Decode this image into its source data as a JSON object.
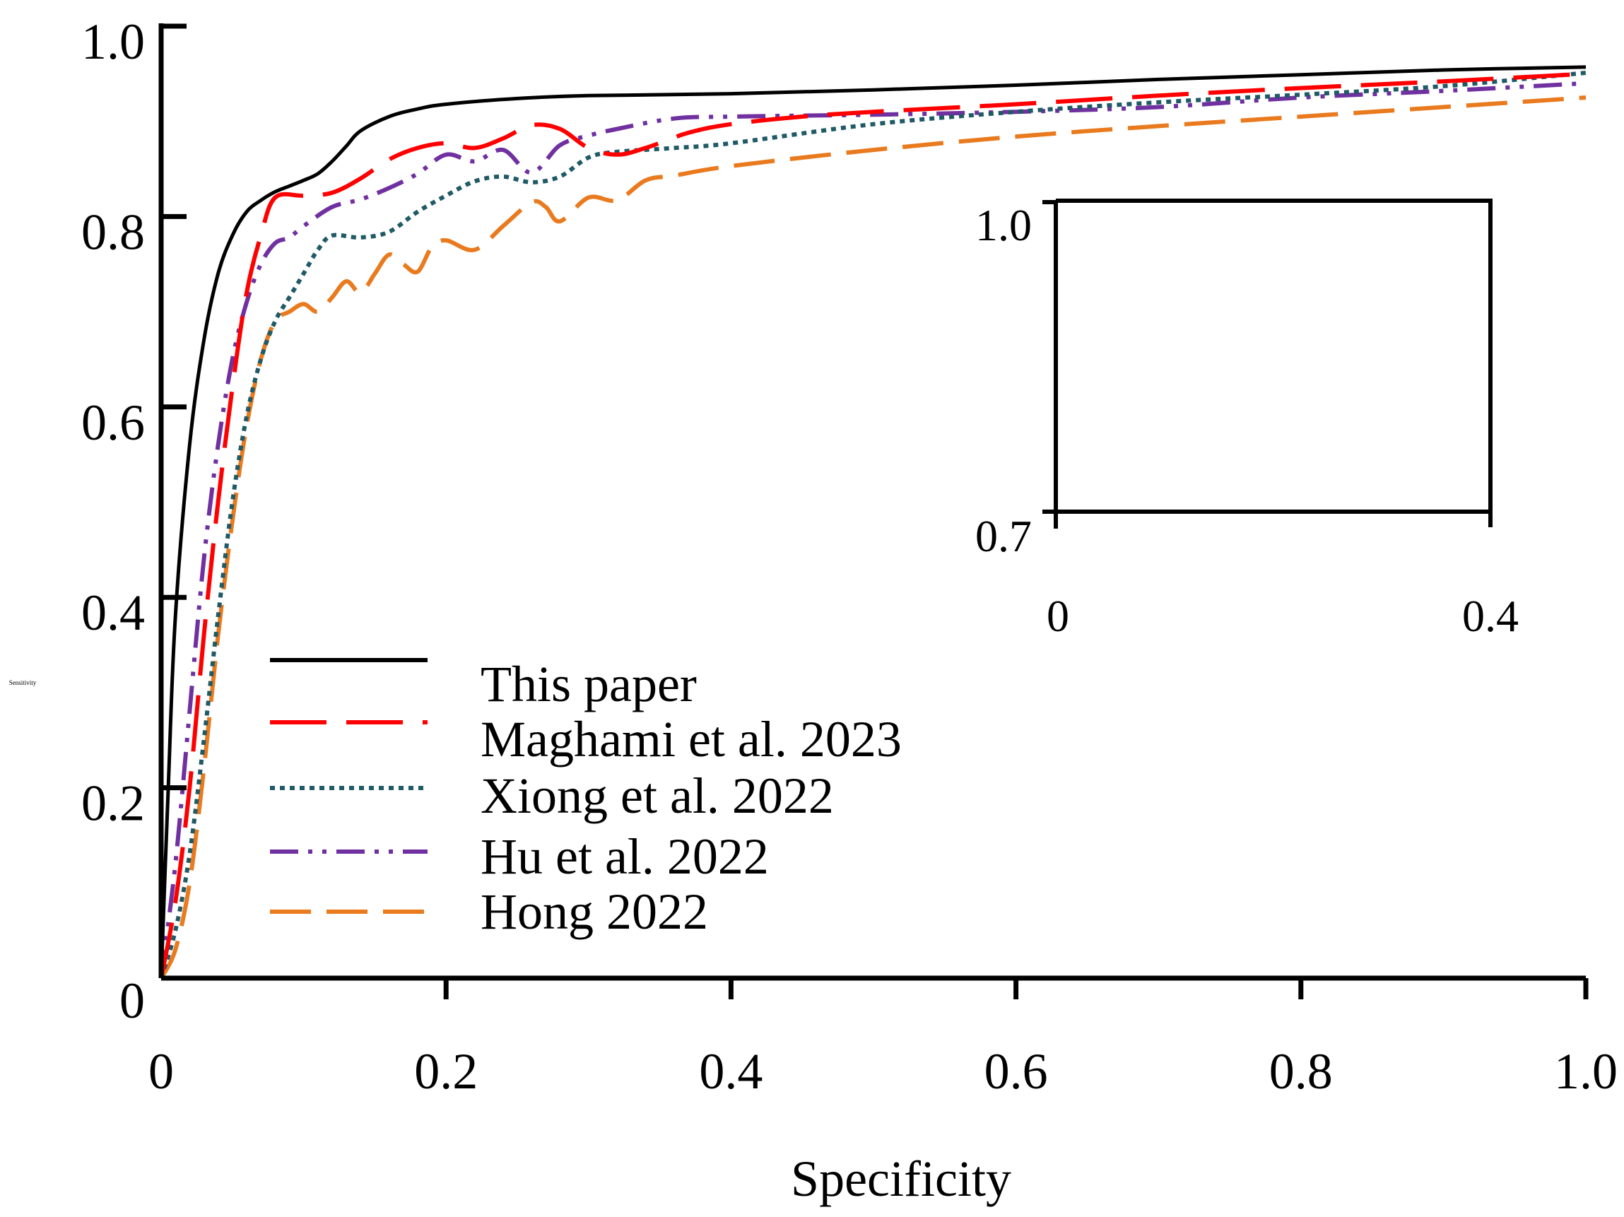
{
  "chart_data": {
    "type": "line",
    "title": "",
    "xlabel": "Specificity",
    "ylabel": "Sensitivity",
    "xlim": [
      0,
      1
    ],
    "ylim": [
      0,
      1
    ],
    "x_ticks": [
      0,
      0.2,
      0.4,
      0.6,
      0.8,
      1.0
    ],
    "x_tick_labels": [
      "0",
      "0.2",
      "0.4",
      "0.6",
      "0.8",
      "1.0"
    ],
    "y_ticks": [
      0,
      0.2,
      0.4,
      0.6,
      0.8,
      1.0
    ],
    "y_tick_labels": [
      "0",
      "0.2",
      "0.4",
      "0.6",
      "0.8",
      "1.0"
    ],
    "grid": false,
    "legend_position": "lower-left",
    "series": [
      {
        "name": "This paper",
        "color": "#000000",
        "style": "solid",
        "x": [
          0,
          0.005,
          0.01,
          0.02,
          0.03,
          0.04,
          0.05,
          0.06,
          0.07,
          0.08,
          0.09,
          0.1,
          0.11,
          0.12,
          0.13,
          0.14,
          0.16,
          0.18,
          0.2,
          0.25,
          0.3,
          0.4,
          0.5,
          0.6,
          0.7,
          0.8,
          0.9,
          1.0
        ],
        "y": [
          0,
          0.2,
          0.38,
          0.56,
          0.67,
          0.74,
          0.78,
          0.805,
          0.817,
          0.826,
          0.832,
          0.838,
          0.845,
          0.858,
          0.874,
          0.89,
          0.905,
          0.913,
          0.918,
          0.924,
          0.927,
          0.929,
          0.933,
          0.938,
          0.944,
          0.949,
          0.954,
          0.957
        ]
      },
      {
        "name": "Maghami et al. 2023",
        "color": "#ff0000",
        "style": "long-dash",
        "x": [
          0,
          0.01,
          0.02,
          0.03,
          0.04,
          0.05,
          0.06,
          0.07,
          0.08,
          0.1,
          0.12,
          0.14,
          0.16,
          0.18,
          0.2,
          0.22,
          0.24,
          0.26,
          0.28,
          0.3,
          0.32,
          0.34,
          0.37,
          0.4,
          0.45,
          0.5,
          0.6,
          0.7,
          0.8,
          0.9,
          1.0
        ],
        "y": [
          0,
          0.08,
          0.2,
          0.36,
          0.5,
          0.62,
          0.72,
          0.78,
          0.82,
          0.822,
          0.825,
          0.84,
          0.86,
          0.872,
          0.877,
          0.872,
          0.882,
          0.896,
          0.892,
          0.872,
          0.865,
          0.872,
          0.888,
          0.897,
          0.905,
          0.91,
          0.918,
          0.927,
          0.935,
          0.942,
          0.95
        ]
      },
      {
        "name": "Xiong et al. 2022",
        "color": "#1f5a66",
        "style": "dotted",
        "x": [
          0,
          0.01,
          0.02,
          0.03,
          0.04,
          0.05,
          0.06,
          0.07,
          0.08,
          0.09,
          0.1,
          0.11,
          0.12,
          0.14,
          0.16,
          0.18,
          0.2,
          0.22,
          0.24,
          0.26,
          0.28,
          0.3,
          0.32,
          0.36,
          0.4,
          0.5,
          0.6,
          0.7,
          0.8,
          0.9,
          1.0
        ],
        "y": [
          0,
          0.05,
          0.13,
          0.25,
          0.38,
          0.5,
          0.59,
          0.65,
          0.69,
          0.715,
          0.74,
          0.765,
          0.78,
          0.778,
          0.784,
          0.805,
          0.822,
          0.837,
          0.842,
          0.836,
          0.842,
          0.862,
          0.868,
          0.872,
          0.877,
          0.897,
          0.91,
          0.92,
          0.928,
          0.937,
          0.951
        ]
      },
      {
        "name": "Hu et al. 2022",
        "color": "#7030a0",
        "style": "dash-dot-dot",
        "x": [
          0,
          0.01,
          0.02,
          0.03,
          0.04,
          0.05,
          0.06,
          0.07,
          0.08,
          0.09,
          0.1,
          0.12,
          0.14,
          0.16,
          0.18,
          0.2,
          0.22,
          0.24,
          0.26,
          0.28,
          0.3,
          0.32,
          0.36,
          0.4,
          0.5,
          0.6,
          0.7,
          0.8,
          0.9,
          1.0
        ],
        "y": [
          0,
          0.12,
          0.28,
          0.44,
          0.56,
          0.65,
          0.71,
          0.75,
          0.772,
          0.778,
          0.79,
          0.81,
          0.818,
          0.83,
          0.845,
          0.865,
          0.858,
          0.87,
          0.846,
          0.875,
          0.885,
          0.892,
          0.903,
          0.905,
          0.907,
          0.91,
          0.915,
          0.925,
          0.932,
          0.94
        ]
      },
      {
        "name": "Hong 2022",
        "color": "#e97a1e",
        "style": "dashed",
        "x": [
          0,
          0.01,
          0.02,
          0.03,
          0.04,
          0.05,
          0.06,
          0.07,
          0.08,
          0.09,
          0.1,
          0.11,
          0.12,
          0.13,
          0.14,
          0.15,
          0.16,
          0.17,
          0.18,
          0.19,
          0.2,
          0.22,
          0.24,
          0.26,
          0.27,
          0.28,
          0.3,
          0.32,
          0.34,
          0.36,
          0.4,
          0.5,
          0.6,
          0.7,
          0.8,
          0.9,
          1.0
        ],
        "y": [
          0,
          0.03,
          0.1,
          0.22,
          0.36,
          0.48,
          0.58,
          0.65,
          0.69,
          0.7,
          0.708,
          0.7,
          0.715,
          0.732,
          0.72,
          0.74,
          0.76,
          0.75,
          0.742,
          0.768,
          0.775,
          0.765,
          0.79,
          0.815,
          0.81,
          0.795,
          0.82,
          0.817,
          0.838,
          0.843,
          0.853,
          0.87,
          0.884,
          0.895,
          0.905,
          0.915,
          0.925
        ]
      }
    ],
    "inset": {
      "xlim": [
        0,
        0.4
      ],
      "ylim": [
        0.7,
        1.0
      ],
      "x_tick_labels": [
        "0",
        "0.4"
      ],
      "y_tick_labels": [
        "1.0",
        "0.7"
      ]
    }
  }
}
